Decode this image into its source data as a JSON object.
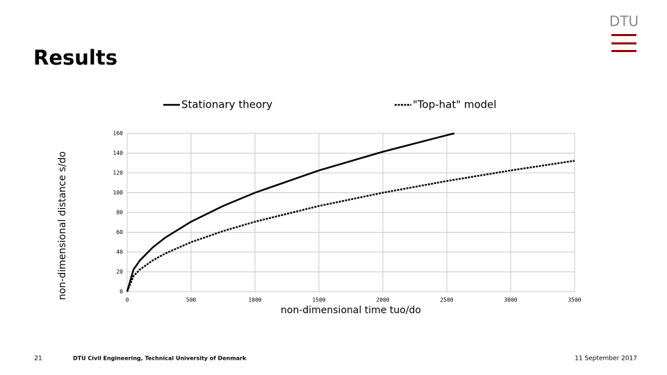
{
  "slide": {
    "title": "Results",
    "logo": "DTU",
    "page_number": "21",
    "footer": "DTU Civil Engineering, Technical University of Denmark",
    "date": "11 September 2017"
  },
  "chart_data": {
    "type": "line",
    "x_label": "non-dimensional time tuo/do",
    "y_label": "non-dimensional distance s/do",
    "x": [
      0,
      50,
      100,
      200,
      300,
      500,
      750,
      1000,
      1500,
      2000,
      2500,
      2560,
      3000,
      3500
    ],
    "series": [
      {
        "name": "Stationary theory",
        "color": "#000000",
        "style": "solid",
        "values": [
          0,
          22.4,
          31.6,
          44.7,
          54.8,
          70.7,
          86.6,
          100,
          122.5,
          141.4,
          158.1,
          160,
          null,
          null
        ]
      },
      {
        "name": "\"Top-hat\" model",
        "color": "#000000",
        "style": "dashed",
        "values": [
          0,
          15.8,
          22.4,
          31.6,
          38.7,
          50,
          61.2,
          70.7,
          86.6,
          100,
          111.8,
          113.1,
          122.5,
          132.3
        ]
      }
    ],
    "xlim": [
      0,
      3500
    ],
    "xticks": [
      0,
      500,
      1000,
      1500,
      2000,
      2500,
      3000,
      3500
    ],
    "ylim": [
      0,
      160
    ],
    "yticks": [
      0,
      20,
      40,
      60,
      80,
      100,
      120,
      140,
      160
    ],
    "grid": true,
    "legend": "top"
  }
}
